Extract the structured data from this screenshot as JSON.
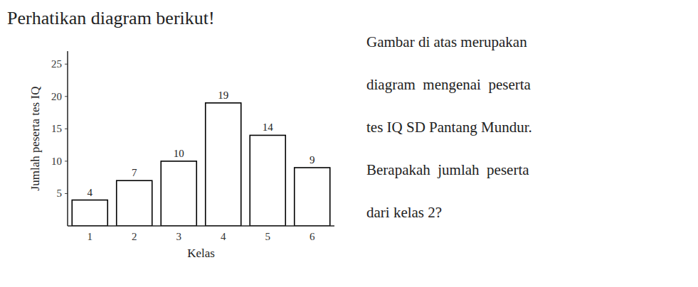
{
  "chart_data": {
    "type": "bar",
    "title": "Perhatikan diagram berikut!",
    "categories": [
      1,
      2,
      3,
      4,
      5,
      6
    ],
    "values": [
      4,
      7,
      10,
      19,
      14,
      9
    ],
    "xlabel": "Kelas",
    "ylabel": "Jumlah peserta tes IQ",
    "color": "#ffffff",
    "ylim": [
      0,
      27
    ],
    "yticks": [
      5,
      10,
      15,
      20,
      25
    ],
    "grid": false,
    "data_labels": true,
    "annotations": [
      "Gambar di atas merupakan",
      "diagram  mengenai  peserta",
      "tes IQ SD Pantang Mundur.",
      "Berapakah  jumlah  peserta",
      "dari kelas 2?"
    ]
  }
}
